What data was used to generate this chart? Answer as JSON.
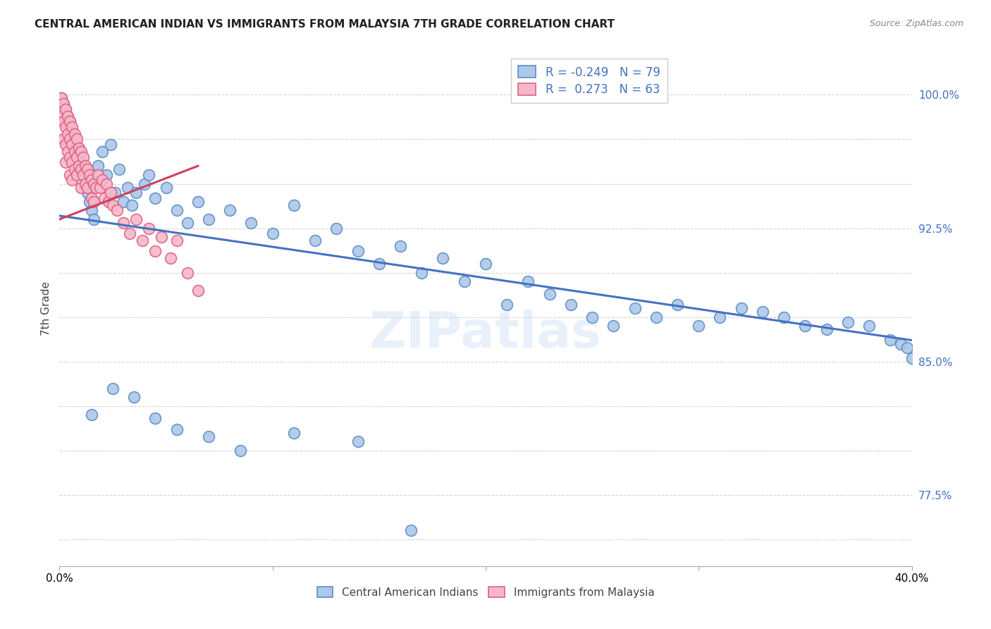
{
  "title": "CENTRAL AMERICAN INDIAN VS IMMIGRANTS FROM MALAYSIA 7TH GRADE CORRELATION CHART",
  "source": "Source: ZipAtlas.com",
  "ylabel": "7th Grade",
  "y_ticks": [
    0.75,
    0.775,
    0.8,
    0.825,
    0.85,
    0.875,
    0.9,
    0.925,
    0.95,
    0.975,
    1.0
  ],
  "y_tick_labels": [
    "",
    "77.5%",
    "",
    "",
    "85.0%",
    "",
    "",
    "92.5%",
    "",
    "",
    "100.0%"
  ],
  "xmin": 0.0,
  "xmax": 0.4,
  "ymin": 0.735,
  "ymax": 1.025,
  "blue_R": -0.249,
  "blue_N": 79,
  "pink_R": 0.273,
  "pink_N": 63,
  "blue_color": "#adc8e8",
  "pink_color": "#f5b8ca",
  "blue_edge_color": "#5b8ec9",
  "pink_edge_color": "#e06080",
  "blue_line_color": "#4472c4",
  "pink_line_color": "#d04060",
  "legend_label_blue": "Central American Indians",
  "legend_label_pink": "Immigrants from Malaysia",
  "blue_line_x0": 0.0,
  "blue_line_y0": 0.932,
  "blue_line_x1": 0.4,
  "blue_line_y1": 0.862,
  "pink_line_x0": 0.0,
  "pink_line_y0": 0.93,
  "pink_line_x1": 0.065,
  "pink_line_y1": 0.96,
  "blue_scatter_x": [
    0.001,
    0.002,
    0.003,
    0.004,
    0.005,
    0.006,
    0.007,
    0.008,
    0.009,
    0.01,
    0.011,
    0.012,
    0.013,
    0.014,
    0.015,
    0.016,
    0.018,
    0.02,
    0.022,
    0.024,
    0.026,
    0.028,
    0.03,
    0.032,
    0.034,
    0.036,
    0.04,
    0.042,
    0.045,
    0.05,
    0.055,
    0.06,
    0.065,
    0.07,
    0.08,
    0.09,
    0.1,
    0.11,
    0.12,
    0.13,
    0.14,
    0.15,
    0.16,
    0.17,
    0.18,
    0.19,
    0.2,
    0.21,
    0.22,
    0.23,
    0.24,
    0.25,
    0.26,
    0.27,
    0.28,
    0.29,
    0.3,
    0.31,
    0.32,
    0.33,
    0.34,
    0.35,
    0.36,
    0.37,
    0.38,
    0.39,
    0.395,
    0.398,
    0.4,
    0.015,
    0.025,
    0.035,
    0.045,
    0.055,
    0.07,
    0.085,
    0.11,
    0.14,
    0.165
  ],
  "blue_scatter_y": [
    0.998,
    0.995,
    0.992,
    0.988,
    0.985,
    0.98,
    0.975,
    0.97,
    0.965,
    0.96,
    0.955,
    0.95,
    0.945,
    0.94,
    0.935,
    0.93,
    0.96,
    0.968,
    0.955,
    0.972,
    0.945,
    0.958,
    0.94,
    0.948,
    0.938,
    0.945,
    0.95,
    0.955,
    0.942,
    0.948,
    0.935,
    0.928,
    0.94,
    0.93,
    0.935,
    0.928,
    0.922,
    0.938,
    0.918,
    0.925,
    0.912,
    0.905,
    0.915,
    0.9,
    0.908,
    0.895,
    0.905,
    0.882,
    0.895,
    0.888,
    0.882,
    0.875,
    0.87,
    0.88,
    0.875,
    0.882,
    0.87,
    0.875,
    0.88,
    0.878,
    0.875,
    0.87,
    0.868,
    0.872,
    0.87,
    0.862,
    0.86,
    0.858,
    0.852,
    0.82,
    0.835,
    0.83,
    0.818,
    0.812,
    0.808,
    0.8,
    0.81,
    0.805,
    0.755
  ],
  "pink_scatter_x": [
    0.001,
    0.001,
    0.002,
    0.002,
    0.002,
    0.003,
    0.003,
    0.003,
    0.003,
    0.004,
    0.004,
    0.004,
    0.005,
    0.005,
    0.005,
    0.005,
    0.006,
    0.006,
    0.006,
    0.006,
    0.007,
    0.007,
    0.007,
    0.008,
    0.008,
    0.008,
    0.009,
    0.009,
    0.01,
    0.01,
    0.01,
    0.011,
    0.011,
    0.012,
    0.012,
    0.013,
    0.013,
    0.014,
    0.015,
    0.015,
    0.016,
    0.016,
    0.017,
    0.018,
    0.019,
    0.02,
    0.021,
    0.022,
    0.023,
    0.024,
    0.025,
    0.027,
    0.03,
    0.033,
    0.036,
    0.039,
    0.042,
    0.045,
    0.048,
    0.052,
    0.055,
    0.06,
    0.065
  ],
  "pink_scatter_y": [
    0.998,
    0.988,
    0.995,
    0.985,
    0.975,
    0.992,
    0.982,
    0.972,
    0.962,
    0.988,
    0.978,
    0.968,
    0.985,
    0.975,
    0.965,
    0.955,
    0.982,
    0.972,
    0.962,
    0.952,
    0.978,
    0.968,
    0.958,
    0.975,
    0.965,
    0.955,
    0.97,
    0.96,
    0.968,
    0.958,
    0.948,
    0.965,
    0.955,
    0.96,
    0.95,
    0.958,
    0.948,
    0.955,
    0.952,
    0.942,
    0.95,
    0.94,
    0.948,
    0.955,
    0.948,
    0.952,
    0.942,
    0.95,
    0.94,
    0.945,
    0.938,
    0.935,
    0.928,
    0.922,
    0.93,
    0.918,
    0.925,
    0.912,
    0.92,
    0.908,
    0.918,
    0.9,
    0.89
  ]
}
